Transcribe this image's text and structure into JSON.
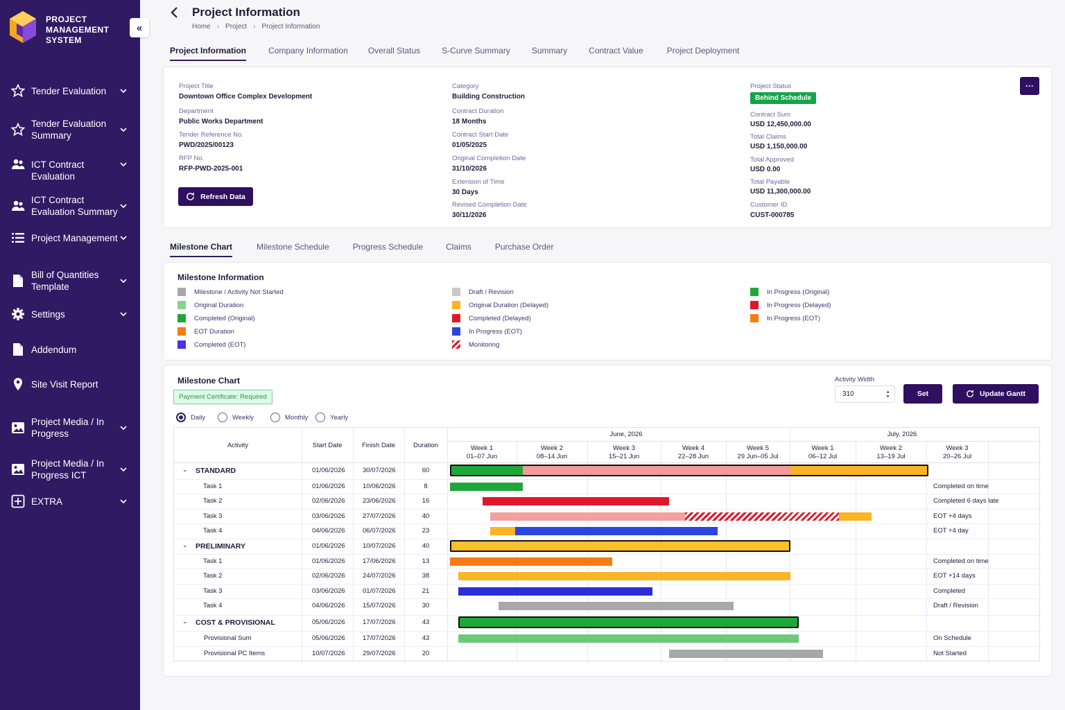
{
  "app": {
    "brand_line1": "PROJECT",
    "brand_line2": "MANAGEMENT",
    "brand_line3": "SYSTEM"
  },
  "sidebar": {
    "items": [
      {
        "label": "Tender Evaluation",
        "icon": "star-icon"
      },
      {
        "label": "Tender Evaluation Summary",
        "icon": "star-icon"
      },
      {
        "label": "ICT Contract Evaluation",
        "icon": "users-icon"
      },
      {
        "label": "ICT Contract Evaluation Summary",
        "icon": "users-icon"
      },
      {
        "label": "Project Management",
        "icon": "list-icon"
      },
      {
        "label": "Bill of Quantities Template",
        "icon": "document-icon"
      },
      {
        "label": "Settings",
        "icon": "gear-icon"
      },
      {
        "label": "Addendum",
        "icon": "document-icon"
      },
      {
        "label": "Site Visit Report",
        "icon": "map-pin-icon"
      },
      {
        "label": "Project Media / In Progress",
        "icon": "image-icon"
      },
      {
        "label": "Project Media / In Progress ICT",
        "icon": "image-icon"
      },
      {
        "label": "EXTRA",
        "icon": "plus-box-icon"
      }
    ]
  },
  "header": {
    "title": "Project Information",
    "breadcrumb": [
      "Home",
      "Project",
      "Project Information"
    ]
  },
  "main_tabs": [
    "Project Information",
    "Company Information",
    "Overall Status",
    "S-Curve Summary",
    "Summary",
    "Contract Value",
    "Project Deployment"
  ],
  "project": {
    "title_label": "Project Title",
    "title": "Downtown Office Complex Development",
    "department_label": "Department",
    "department": "Public Works Department",
    "tender_label": "Tender Reference No.",
    "tender": "PWD/2025/00123",
    "rfp_label": "RFP No.",
    "rfp": "RFP-PWD-2025-001",
    "category_label": "Category",
    "category": "Building Construction",
    "duration_label": "Contract Duration",
    "duration": "18 Months",
    "start_label": "Contract Start Date",
    "start": "01/05/2025",
    "orig_completion_label": "Original Completion Date",
    "orig_completion": "31/10/2026",
    "eot_label": "Extension of Time",
    "eot": "30 Days",
    "revised_label": "Revised Completion Date",
    "revised": "30/11/2026",
    "status_label": "Project Status",
    "status": "Behind Schedule",
    "sum_label": "Contract Sum",
    "sum": "USD 12,450,000.00",
    "claims_label": "Total Claims",
    "claims": "USD 1,150,000.00",
    "approved_label": "Total Approved",
    "approved": "USD 0.00",
    "payable_label": "Total Payable",
    "payable": "USD 11,300,000.00",
    "customer_label": "Customer ID",
    "customer": "CUST-000785",
    "refresh_label": "Refresh Data",
    "more_label": "···"
  },
  "sub_tabs": [
    "Milestone Chart",
    "Milestone Schedule",
    "Progress Schedule",
    "Claims",
    "Purchase Order"
  ],
  "legend": {
    "title": "Milestone Information",
    "items": [
      {
        "label": "Milestone / Activity Not Started",
        "color": "#a8a8a8"
      },
      {
        "label": "Original Duration",
        "color": "#86d38f"
      },
      {
        "label": "Completed (Original)",
        "color": "#1fa83a"
      },
      {
        "label": "EOT Duration",
        "color": "#f57c12"
      },
      {
        "label": "Completed (EOT)",
        "color": "#4f2fe8"
      },
      {
        "label": "Draft / Revision",
        "color": "#c9c9c9"
      },
      {
        "label": "Original Duration (Delayed)",
        "color": "#fbb424"
      },
      {
        "label": "Completed (Delayed)",
        "color": "#e0172b"
      },
      {
        "label": "In Progress (EOT)",
        "color": "#2b45e0"
      },
      {
        "label": "Monitoring",
        "color": "hatch"
      },
      {
        "label": "In Progress (Original)",
        "color": "#1fa83a"
      },
      {
        "label": "In Progress (Delayed)",
        "color": "#e0172b"
      },
      {
        "label": "In Progress (EOT)",
        "color": "#f57c12"
      }
    ]
  },
  "chart": {
    "title": "Milestone Chart",
    "certificate": "Payment Certificate: Required",
    "views": [
      "Daily",
      "Weekly",
      "Monthly",
      "Yearly"
    ],
    "selected_view": "Daily",
    "activity_width_label": "Activity Width",
    "activity_width": "310",
    "set_label": "Set",
    "update_label": "Update Gantt",
    "columns": {
      "activity": "Activity",
      "start": "Start Date",
      "finish": "Finish Date",
      "duration": "Duration"
    },
    "months": [
      "June, 2026",
      "July, 2026"
    ],
    "weeks": [
      {
        "w": "Week 1",
        "d": "01–07 Jun"
      },
      {
        "w": "Week 2",
        "d": "08–14 Jun"
      },
      {
        "w": "Week 3",
        "d": "15–21 Jun"
      },
      {
        "w": "Week 4",
        "d": "22–28 Jun"
      },
      {
        "w": "Week 5",
        "d": "29 Jun–05 Jul"
      },
      {
        "w": "Week 1",
        "d": "06–12 Jul"
      },
      {
        "w": "Week 2",
        "d": "13–19 Jul"
      },
      {
        "w": "Week 3",
        "d": "20–26 Jul"
      }
    ]
  },
  "chart_data": {
    "type": "table",
    "rows": [
      {
        "activity": "STANDARD",
        "group": true,
        "start": "01/06/2026",
        "finish": "30/07/2026",
        "duration": "60",
        "note": "",
        "segments": [
          {
            "from": "01/06/2026",
            "to": "10/06/2026",
            "color": "#1fa83a"
          },
          {
            "from": "10/06/2026",
            "to": "13/07/2026",
            "color": "#f49a9a"
          },
          {
            "from": "13/07/2026",
            "to": "30/07/2026",
            "color": "#fbb424"
          }
        ]
      },
      {
        "activity": "Task 1",
        "start": "01/06/2026",
        "finish": "10/06/2026",
        "duration": "8",
        "note": "Completed on time",
        "segments": [
          {
            "from": "01/06/2026",
            "to": "10/06/2026",
            "color": "#1fa83a"
          }
        ]
      },
      {
        "activity": "Task 2",
        "start": "02/06/2026",
        "finish": "23/06/2026",
        "duration": "16",
        "note": "Completed 6 days late",
        "segments": [
          {
            "from": "05/06/2026",
            "to": "28/06/2026",
            "color": "#e0172b"
          }
        ]
      },
      {
        "activity": "Task 3",
        "start": "03/06/2026",
        "finish": "27/07/2026",
        "duration": "40",
        "note": "EOT +4 days",
        "segments": [
          {
            "from": "06/06/2026",
            "to": "30/06/2026",
            "color": "#f4a0a0"
          },
          {
            "from": "30/06/2026",
            "to": "19/07/2026",
            "color": "hatch"
          },
          {
            "from": "19/07/2026",
            "to": "23/07/2026",
            "color": "#fbb424"
          }
        ]
      },
      {
        "activity": "Task 4",
        "start": "04/06/2026",
        "finish": "06/07/2026",
        "duration": "23",
        "note": "EOT +4 day",
        "segments": [
          {
            "from": "06/06/2026",
            "to": "09/06/2026",
            "color": "#fbb424"
          },
          {
            "from": "09/06/2026",
            "to": "04/07/2026",
            "color": "#2b45e0"
          }
        ]
      },
      {
        "activity": "PRELIMINARY",
        "group": true,
        "start": "01/06/2026",
        "finish": "10/07/2026",
        "duration": "40",
        "note": "",
        "segments": [
          {
            "from": "01/06/2026",
            "to": "13/07/2026",
            "color": "#fbc02d"
          }
        ]
      },
      {
        "activity": "Task 1",
        "start": "01/06/2026",
        "finish": "17/06/2026",
        "duration": "13",
        "note": "Completed on time",
        "segments": [
          {
            "from": "01/06/2026",
            "to": "21/06/2026",
            "color": "#f57c12"
          }
        ]
      },
      {
        "activity": "Task 2",
        "start": "02/06/2026",
        "finish": "24/07/2026",
        "duration": "38",
        "note": "EOT +14 days",
        "segments": [
          {
            "from": "02/06/2026",
            "to": "13/07/2026",
            "color": "#fbb424"
          }
        ]
      },
      {
        "activity": "Task 3",
        "start": "03/06/2026",
        "finish": "01/07/2026",
        "duration": "21",
        "note": "Completed",
        "segments": [
          {
            "from": "02/06/2026",
            "to": "26/06/2026",
            "color": "#2b2fd8"
          }
        ]
      },
      {
        "activity": "Task 4",
        "start": "04/06/2026",
        "finish": "15/07/2026",
        "duration": "30",
        "note": "Draft / Revision",
        "segments": [
          {
            "from": "07/06/2026",
            "to": "06/07/2026",
            "color": "#a8a8a8"
          }
        ]
      },
      {
        "activity": "COST & PROVISIONAL",
        "group": true,
        "start": "05/06/2026",
        "finish": "17/07/2026",
        "duration": "43",
        "note": "",
        "segments": [
          {
            "from": "02/06/2026",
            "to": "14/07/2026",
            "color": "#1fa83a"
          }
        ]
      },
      {
        "activity": "Provisional Sum",
        "start": "05/06/2026",
        "finish": "17/07/2026",
        "duration": "43",
        "note": "On Schedule",
        "segments": [
          {
            "from": "02/06/2026",
            "to": "14/07/2026",
            "color": "#6cc97a"
          }
        ]
      },
      {
        "activity": "Provisional PC Items",
        "start": "10/07/2026",
        "finish": "29/07/2026",
        "duration": "20",
        "note": "Not Started",
        "segments": [
          {
            "from": "28/06/2026",
            "to": "17/07/2026",
            "color": "#a8a8a8"
          }
        ]
      }
    ]
  }
}
